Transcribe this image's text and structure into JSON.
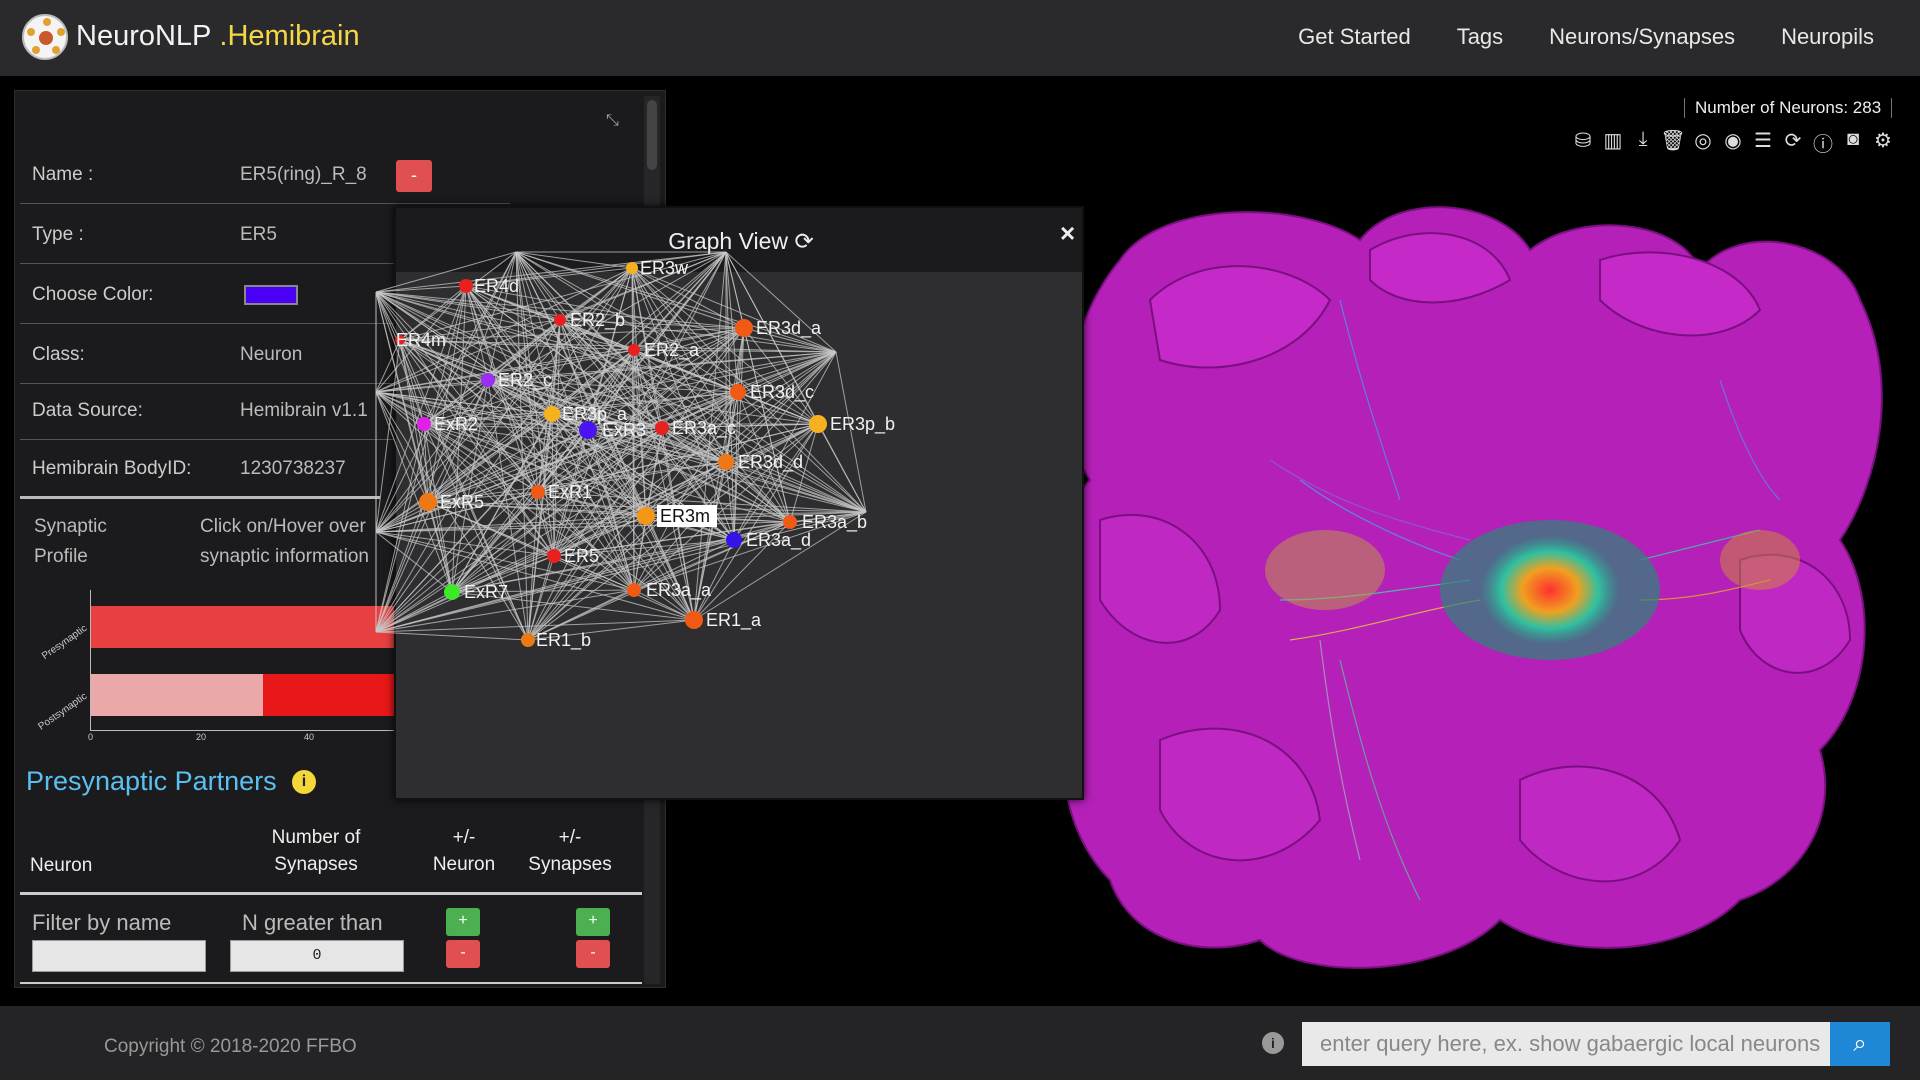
{
  "nav": {
    "brand": "NeuroNLP",
    "brand_sub": ".Hemibrain",
    "items": [
      "Get Started",
      "Tags",
      "Neurons/Synapses",
      "Neuropils"
    ]
  },
  "info": {
    "name_label": "Name :",
    "name_value": "ER5(ring)_R_8",
    "minus": "-",
    "type_label": "Type :",
    "type_value": "ER5",
    "color_label": "Choose Color:",
    "color_value": "#4a00f5",
    "class_label": "Class:",
    "class_value": "Neuron",
    "source_label": "Data Source:",
    "source_value": "Hemibrain v1.1",
    "bodyid_label": "Hemibrain BodyID:",
    "bodyid_value": "1230738237",
    "synaptic_label_1": "Synaptic",
    "synaptic_label_2": "Profile",
    "synaptic_text_1": "Click on/Hover over",
    "synaptic_text_2": "synaptic information"
  },
  "synaptic_chart": {
    "categories": [
      "Presynaptic",
      "Postsynaptic"
    ],
    "ticks": [
      "0",
      "20",
      "40"
    ]
  },
  "partners": {
    "title": "Presynaptic Partners",
    "info_icon": "i",
    "col_neuron": "Neuron",
    "col_syn_1": "Number of",
    "col_syn_2": "Synapses",
    "col_pm_neuron_1": "+/-",
    "col_pm_neuron_2": "Neuron",
    "col_pm_syn_1": "+/-",
    "col_pm_syn_2": "Synapses",
    "filter_name": "Filter by name",
    "filter_n": "N greater than",
    "filter_n_value": "0",
    "plus": "+",
    "minus": "-"
  },
  "graph": {
    "title": "Graph View",
    "refresh_icon": "⟳",
    "close": "×",
    "nodes": [
      {
        "label": "ER4d",
        "color": "#e8201e"
      },
      {
        "label": "ER3w",
        "color": "#f5b21e"
      },
      {
        "label": "ER2_b",
        "color": "#e8201e"
      },
      {
        "label": "ER3d_a",
        "color": "#f05a14"
      },
      {
        "label": "ER4m",
        "color": "#e8201e"
      },
      {
        "label": "ER2_a",
        "color": "#e8201e"
      },
      {
        "label": "ER2_c",
        "color": "#9b2ef0"
      },
      {
        "label": "ER3d_c",
        "color": "#f05a14"
      },
      {
        "label": "ExR2",
        "color": "#e020e8"
      },
      {
        "label": "ER3p_a",
        "color": "#f5b21e"
      },
      {
        "label": "ExR3",
        "color": "#4a14f0"
      },
      {
        "label": "ER3a_c",
        "color": "#e8201e"
      },
      {
        "label": "ER3p_b",
        "color": "#f5b21e"
      },
      {
        "label": "ER3d_d",
        "color": "#f07814"
      },
      {
        "label": "ExR1",
        "color": "#f05a14"
      },
      {
        "label": "ExR5",
        "color": "#f07814"
      },
      {
        "label": "ER3m",
        "color": "#f59614"
      },
      {
        "label": "ER3a_b",
        "color": "#f05a14"
      },
      {
        "label": "ER3a_d",
        "color": "#3214e8"
      },
      {
        "label": "ER5",
        "color": "#e8201e"
      },
      {
        "label": "ExR7",
        "color": "#3ce828"
      },
      {
        "label": "ER3a_a",
        "color": "#f05a14"
      },
      {
        "label": "ER1_a",
        "color": "#f05a14"
      },
      {
        "label": "ER1_b",
        "color": "#f07814"
      }
    ]
  },
  "viewer": {
    "count_text": "Number of Neurons: 283",
    "tools": [
      "cubes-icon",
      "bar-chart-icon",
      "download-icon",
      "trash-icon",
      "eye-slash-icon",
      "eye-icon",
      "list-icon",
      "refresh-icon",
      "info-icon",
      "camera-icon",
      "gear-icon"
    ]
  },
  "footer": {
    "copyright": "Copyright © 2018-2020 FFBO",
    "info": "i",
    "query_placeholder": "enter query here, ex. show gabaergic local neurons"
  }
}
